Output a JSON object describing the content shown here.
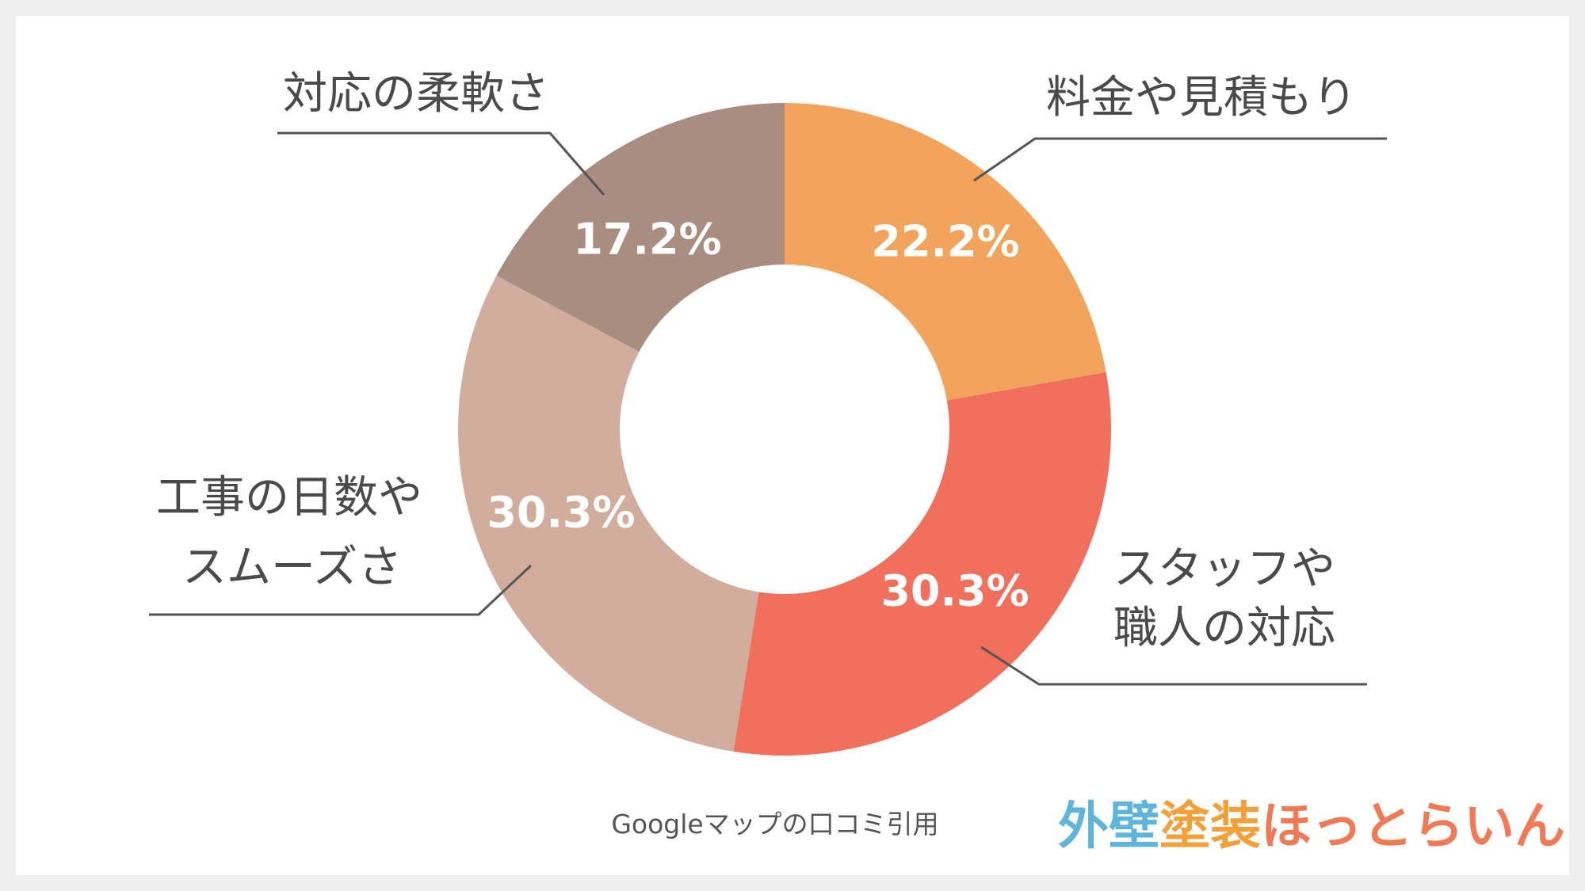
{
  "chart_data": {
    "type": "pie",
    "donut": true,
    "categories": [
      "料金や見積もり",
      "スタッフや職人の対応",
      "工事の日数やスムーズさ",
      "対応の柔軟さ"
    ],
    "values": [
      22.2,
      30.3,
      30.3,
      17.2
    ],
    "value_labels": [
      "22.2%",
      "30.3%",
      "30.3%",
      "17.2%"
    ],
    "label_lines": [
      [
        "料金や見積もり"
      ],
      [
        "スタッフや",
        "職人の対応"
      ],
      [
        "工事の日数や",
        "スムーズさ"
      ],
      [
        "対応の柔軟さ"
      ]
    ],
    "colors": [
      "#f2a45d",
      "#f06f5d",
      "#d0ad9d",
      "#a98d81"
    ],
    "title": "",
    "legend": "none"
  },
  "source_note": "Googleマップの口コミ引用",
  "logo": {
    "text": "外壁塗装ほっとらいん",
    "colors": [
      "#5fb4dc",
      "#5fb4dc",
      "#f2a13a",
      "#f2a13a",
      "#f07a55",
      "#f07a55",
      "#f07a55",
      "#f07a55",
      "#f07a55",
      "#f07a55"
    ]
  }
}
